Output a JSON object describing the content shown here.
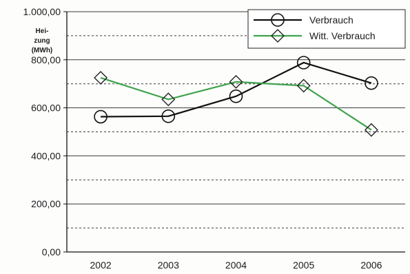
{
  "chart_data": {
    "type": "line",
    "title": "",
    "ylabel_lines": [
      "Hei-",
      "zung",
      "(MWh)"
    ],
    "xlabel": "",
    "categories": [
      "2002",
      "2003",
      "2004",
      "2005",
      "2006"
    ],
    "ylim": [
      0,
      1000
    ],
    "y_ticks": [
      0,
      200,
      400,
      600,
      800,
      1000
    ],
    "y_tick_labels": [
      "0,00",
      "200,00",
      "400,00",
      "600,00",
      "800,00",
      "1.000,00"
    ],
    "dashed_gridlines": [
      100,
      300,
      500,
      700,
      900
    ],
    "grid": true,
    "legend_position": "top-right",
    "series": [
      {
        "name": "Verbrauch",
        "marker": "circle",
        "color": "#111111",
        "values": [
          563,
          565,
          648,
          788,
          703
        ]
      },
      {
        "name": "Witt. Verbrauch",
        "marker": "diamond",
        "color": "#3fa34d",
        "values": [
          725,
          635,
          708,
          692,
          508
        ]
      }
    ]
  }
}
